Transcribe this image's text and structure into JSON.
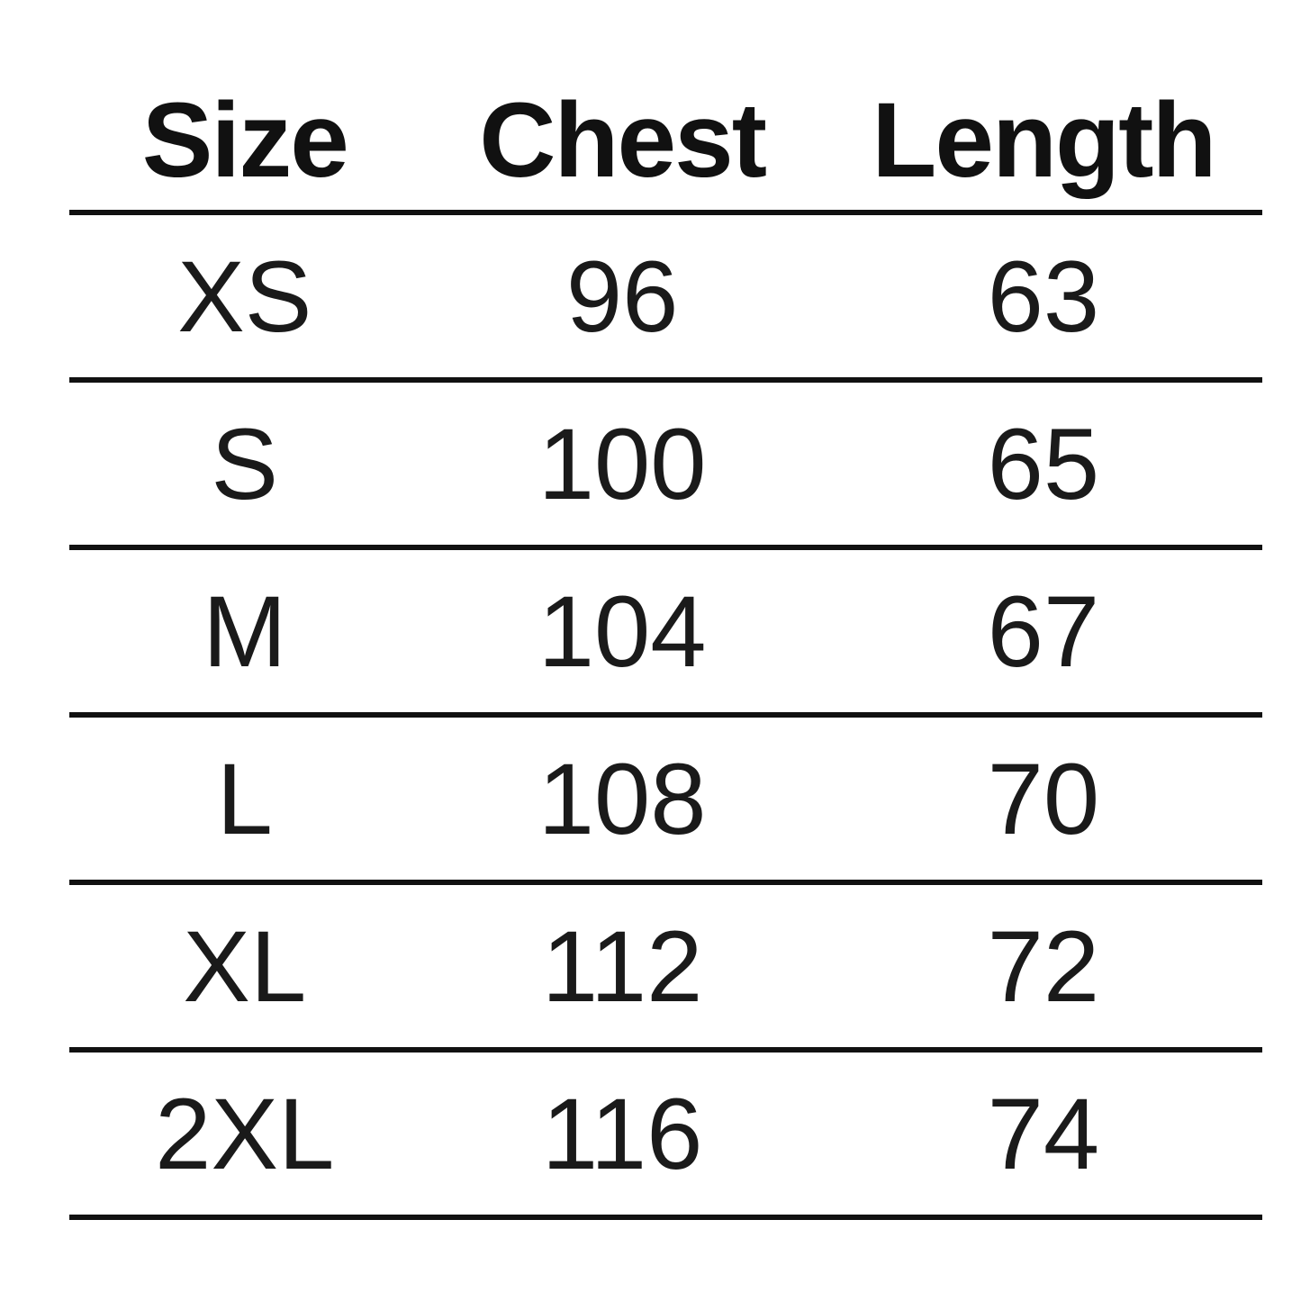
{
  "chart_data": {
    "type": "table",
    "title": "",
    "columns": [
      "Size",
      "Chest",
      "Length"
    ],
    "rows": [
      {
        "size": "XS",
        "chest": "96",
        "length": "63"
      },
      {
        "size": "S",
        "chest": "100",
        "length": "65"
      },
      {
        "size": "M",
        "chest": "104",
        "length": "67"
      },
      {
        "size": "L",
        "chest": "108",
        "length": "70"
      },
      {
        "size": "XL",
        "chest": "112",
        "length": "72"
      },
      {
        "size": "2XL",
        "chest": "116",
        "length": "74"
      }
    ]
  },
  "colors": {
    "background": "#ffffff",
    "text": "#151515",
    "rule": "#111111"
  }
}
